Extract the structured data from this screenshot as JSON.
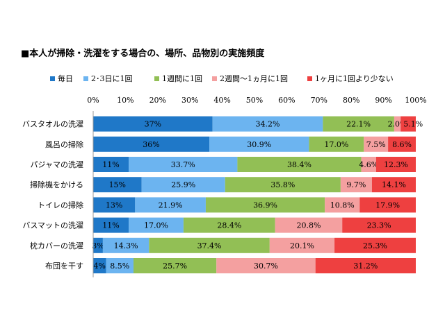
{
  "chart_data": {
    "type": "bar",
    "orientation": "horizontal",
    "stacked": true,
    "percent": true,
    "title": "■本人が掃除・洗濯をする場合の、場所、品物別の実施頻度",
    "xlim": [
      0,
      100
    ],
    "x_ticks": [
      "0%",
      "10%",
      "20%",
      "30%",
      "40%",
      "50%",
      "60%",
      "70%",
      "80%",
      "90%",
      "100%"
    ],
    "legend_position": "top",
    "grid": false,
    "categories": [
      "バスタオルの洗濯",
      "風呂の掃除",
      "パジャマの洗濯",
      "掃除機をかける",
      "トイレの掃除",
      "バスマットの洗濯",
      "枕カバーの洗濯",
      "布団を干す"
    ],
    "series": [
      {
        "name": "毎日",
        "color": "#1F78C8",
        "values": [
          37,
          36,
          11,
          15,
          13,
          11,
          3,
          4
        ],
        "labels": [
          "37%",
          "36%",
          "11%",
          "15%",
          "13%",
          "11%",
          "3%",
          "4%"
        ]
      },
      {
        "name": "2･3日に1回",
        "color": "#6CB4F0",
        "values": [
          34.2,
          30.9,
          33.7,
          25.9,
          21.9,
          17.0,
          14.3,
          8.5
        ],
        "labels": [
          "34.2%",
          "30.9%",
          "33.7%",
          "25.9%",
          "21.9%",
          "17.0%",
          "14.3%",
          "8.5%"
        ]
      },
      {
        "name": "1週間に1回",
        "color": "#92BF55",
        "values": [
          22.1,
          17.0,
          38.4,
          35.8,
          36.9,
          28.4,
          37.4,
          25.7
        ],
        "labels": [
          "22.1%",
          "17.0%",
          "38.4%",
          "35.8%",
          "36.9%",
          "28.4%",
          "37.4%",
          "25.7%"
        ]
      },
      {
        "name": "2週間～1ヵ月に1回",
        "color": "#F4A0A0",
        "values": [
          2.0,
          7.5,
          4.6,
          9.7,
          10.8,
          20.8,
          20.1,
          30.7
        ],
        "labels": [
          "2.0%",
          "7.5%",
          "4.6%",
          "9.7%",
          "10.8%",
          "20.8%",
          "20.1%",
          "30.7%"
        ]
      },
      {
        "name": "1ヶ月に1回より少ない",
        "color": "#EE4040",
        "values": [
          5.1,
          8.6,
          12.3,
          14.1,
          17.9,
          23.3,
          25.3,
          31.2
        ],
        "labels": [
          "5.1%",
          "8.6%",
          "12.3%",
          "14.1%",
          "17.9%",
          "23.3%",
          "25.3%",
          "31.2%"
        ]
      }
    ]
  }
}
